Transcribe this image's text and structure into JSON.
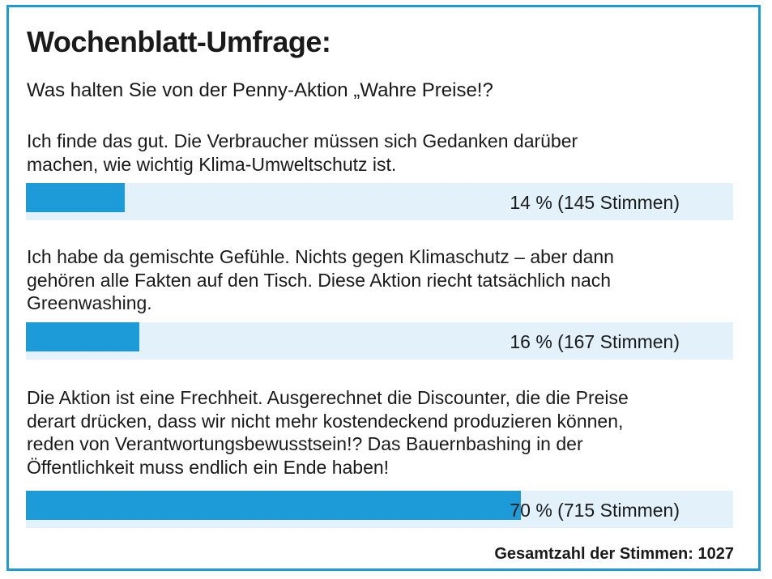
{
  "title": "Wochenblatt-Umfrage:",
  "question": "Was halten Sie von der Penny-Aktion „Wahre Preise!?",
  "answers": [
    {
      "lines": [
        "Ich finde das gut. Die Verbraucher müssen sich Gedanken darüber",
        "machen, wie wichtig Klima-Umweltschutz ist."
      ],
      "result_label": "14 % (145 Stimmen)"
    },
    {
      "lines": [
        "Ich habe da gemischte Gefühle. Nichts gegen Klimaschutz – aber dann",
        "gehören alle Fakten auf den Tisch. Diese Aktion riecht tatsächlich nach",
        "Greenwashing."
      ],
      "result_label": "16 % (167 Stimmen)"
    },
    {
      "lines": [
        "Die Aktion ist eine Frechheit. Ausgerechnet die Discounter, die die Preise",
        "derart drücken, dass wir nicht mehr kostendeckend produzieren können,",
        "reden von Verantwortungsbewusstsein!? Das Bauernbashing in der",
        "Öffentlichkeit muss endlich ein Ende haben!"
      ],
      "result_label": "70 % (715 Stimmen)"
    }
  ],
  "total_label": "Gesamtzahl der Stimmen: 1027",
  "colors": {
    "accent": "#1d9ad8",
    "track": "#e3f1fb",
    "text": "#1a1a1a"
  },
  "chart_data": {
    "type": "bar",
    "orientation": "horizontal",
    "categories": [
      "Ich finde das gut.",
      "Ich habe da gemischte Gefühle.",
      "Die Aktion ist eine Frechheit."
    ],
    "values": [
      14,
      16,
      70
    ],
    "votes": [
      145,
      167,
      715
    ],
    "total_votes": 1027,
    "unit": "%",
    "xlim": [
      0,
      100
    ]
  }
}
